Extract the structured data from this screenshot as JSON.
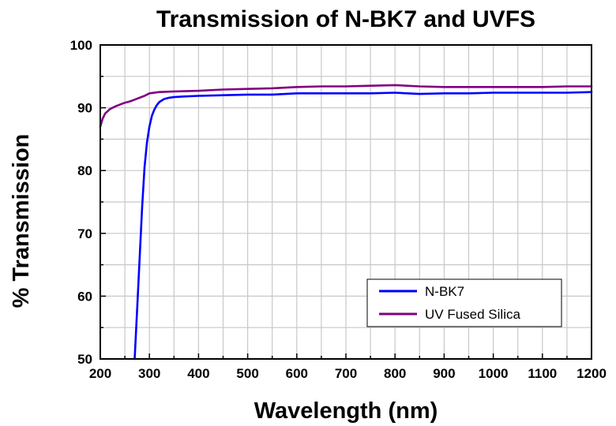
{
  "chart_data": {
    "type": "line",
    "title": "Transmission of N-BK7 and UVFS",
    "xlabel": "Wavelength (nm)",
    "ylabel": "% Transmission",
    "xlim": [
      200,
      1200
    ],
    "ylim": [
      50,
      100
    ],
    "xticks": [
      200,
      300,
      400,
      500,
      600,
      700,
      800,
      900,
      1000,
      1100,
      1200
    ],
    "yticks": [
      50,
      60,
      70,
      80,
      90,
      100
    ],
    "grid": true,
    "legend_position": "lower-right",
    "series": [
      {
        "name": "N-BK7",
        "color": "#0000ff",
        "x": [
          270,
          275,
          280,
          285,
          290,
          295,
          300,
          305,
          310,
          315,
          320,
          330,
          340,
          350,
          370,
          400,
          450,
          500,
          550,
          600,
          650,
          700,
          750,
          800,
          850,
          900,
          950,
          1000,
          1050,
          1100,
          1150,
          1200
        ],
        "y": [
          50.0,
          58.0,
          66.0,
          74.0,
          80.5,
          84.5,
          87.0,
          88.7,
          89.7,
          90.4,
          90.9,
          91.4,
          91.6,
          91.7,
          91.8,
          91.9,
          92.0,
          92.1,
          92.1,
          92.3,
          92.3,
          92.3,
          92.3,
          92.4,
          92.2,
          92.3,
          92.3,
          92.4,
          92.4,
          92.4,
          92.4,
          92.5
        ]
      },
      {
        "name": "UV Fused Silica",
        "color": "#800080",
        "x": [
          200,
          205,
          210,
          220,
          230,
          240,
          250,
          260,
          270,
          280,
          290,
          300,
          320,
          350,
          400,
          450,
          500,
          550,
          600,
          650,
          700,
          750,
          800,
          850,
          900,
          950,
          1000,
          1050,
          1100,
          1150,
          1200
        ],
        "y": [
          87.0,
          88.3,
          89.1,
          89.8,
          90.2,
          90.5,
          90.8,
          91.0,
          91.3,
          91.6,
          91.9,
          92.3,
          92.5,
          92.6,
          92.7,
          92.9,
          93.0,
          93.1,
          93.3,
          93.4,
          93.4,
          93.5,
          93.6,
          93.4,
          93.3,
          93.3,
          93.3,
          93.3,
          93.3,
          93.4,
          93.4
        ]
      }
    ]
  }
}
